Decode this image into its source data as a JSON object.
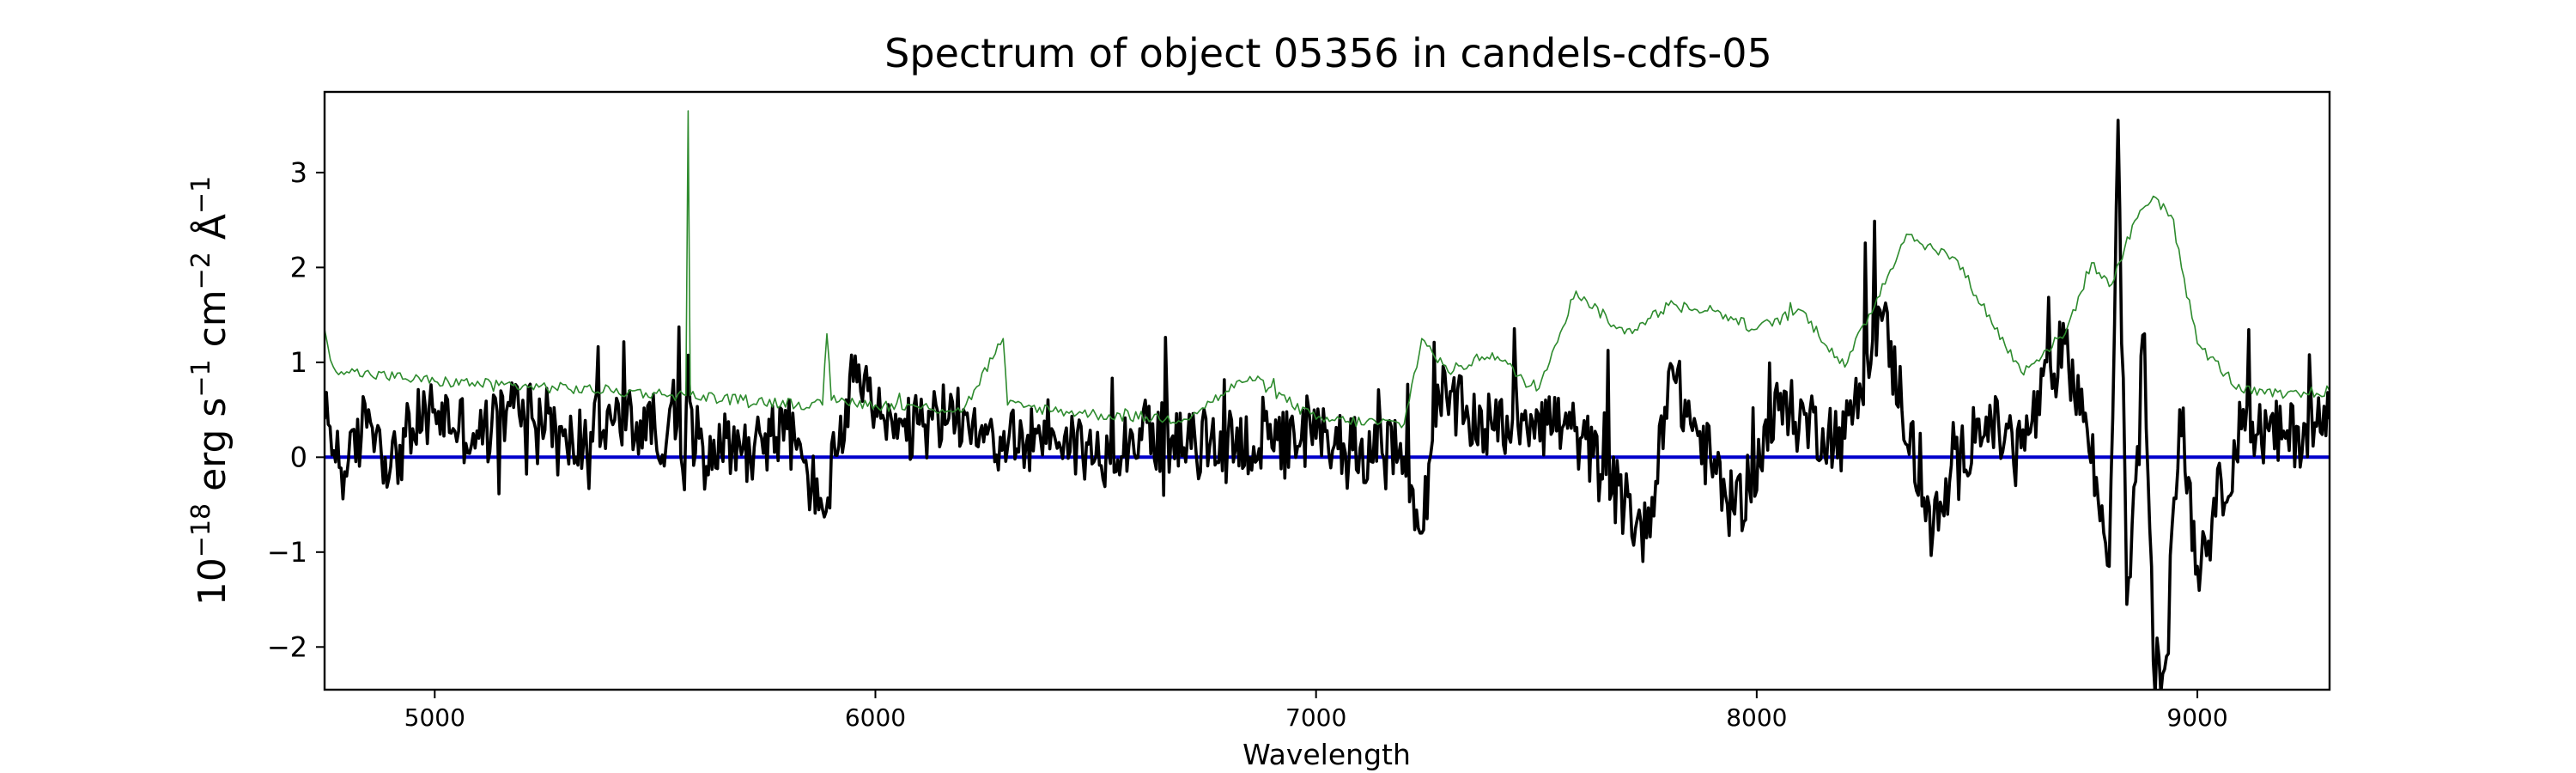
{
  "chart_data": {
    "type": "line",
    "title": "Spectrum of object 05356 in candels-cdfs-05",
    "xlabel": "Wavelength",
    "ylabel": {
      "base": "10",
      "exp": "−18",
      "unit_a": " erg s",
      "exp_a": "−1",
      "unit_b": " cm",
      "exp_b": "−2",
      "unit_c": " Å",
      "exp_c": "−1"
    },
    "xlim": [
      4750,
      9300
    ],
    "ylim": [
      -2.45,
      3.85
    ],
    "x_ticks": [
      5000,
      6000,
      7000,
      8000,
      9000
    ],
    "y_ticks": [
      -2,
      -1,
      0,
      1,
      2,
      3
    ],
    "y_tick_labels": [
      "−2",
      "−1",
      "0",
      "1",
      "2",
      "3"
    ],
    "grid": false,
    "series": [
      {
        "color": "#000000",
        "role": "flux",
        "description_points": [
          [
            4750,
            0.4
          ],
          [
            4800,
            -0.2
          ],
          [
            4850,
            0.5
          ],
          [
            4900,
            -0.1
          ],
          [
            4950,
            0.3
          ],
          [
            5000,
            0.5
          ],
          [
            5100,
            0.2
          ],
          [
            5200,
            0.6
          ],
          [
            5300,
            0.1
          ],
          [
            5400,
            0.4
          ],
          [
            5500,
            0.3
          ],
          [
            5600,
            0.2
          ],
          [
            5700,
            0.1
          ],
          [
            5800,
            0.3
          ],
          [
            5880,
            -0.55
          ],
          [
            5950,
            0.8
          ],
          [
            6050,
            0.2
          ],
          [
            6200,
            0.5
          ],
          [
            6300,
            0.1
          ],
          [
            6400,
            0.3
          ],
          [
            6500,
            0.0
          ],
          [
            6600,
            0.3
          ],
          [
            6700,
            0.1
          ],
          [
            6800,
            0.2
          ],
          [
            6900,
            0.1
          ],
          [
            7000,
            0.2
          ],
          [
            7100,
            0.1
          ],
          [
            7200,
            0.0
          ],
          [
            7240,
            -0.8
          ],
          [
            7280,
            0.6
          ],
          [
            7400,
            0.3
          ],
          [
            7500,
            0.5
          ],
          [
            7600,
            0.2
          ],
          [
            7750,
            -0.85
          ],
          [
            7800,
            0.9
          ],
          [
            7950,
            -0.6
          ],
          [
            8050,
            0.5
          ],
          [
            8200,
            0.2
          ],
          [
            8280,
            1.55
          ],
          [
            8400,
            -0.8
          ],
          [
            8500,
            0.4
          ],
          [
            8600,
            0.1
          ],
          [
            8700,
            1.2
          ],
          [
            8750,
            0.3
          ],
          [
            8800,
            -1.15
          ],
          [
            8820,
            3.55
          ],
          [
            8840,
            -1.55
          ],
          [
            8880,
            1.3
          ],
          [
            8900,
            -2.15
          ],
          [
            8930,
            -2.1
          ],
          [
            8960,
            0.5
          ],
          [
            9000,
            -1.15
          ],
          [
            9100,
            0.3
          ],
          [
            9200,
            0.2
          ],
          [
            9300,
            0.4
          ]
        ]
      },
      {
        "color": "#2e8b2e",
        "role": "error/model",
        "description_points": [
          [
            4750,
            1.35
          ],
          [
            4770,
            0.95
          ],
          [
            4800,
            0.9
          ],
          [
            5000,
            0.8
          ],
          [
            5200,
            0.75
          ],
          [
            5400,
            0.7
          ],
          [
            5570,
            0.65
          ],
          [
            5575,
            3.65
          ],
          [
            5580,
            0.65
          ],
          [
            5700,
            0.6
          ],
          [
            5880,
            0.55
          ],
          [
            5890,
            1.3
          ],
          [
            5900,
            0.6
          ],
          [
            6000,
            0.55
          ],
          [
            6200,
            0.5
          ],
          [
            6290,
            1.25
          ],
          [
            6300,
            0.55
          ],
          [
            6500,
            0.45
          ],
          [
            6700,
            0.4
          ],
          [
            6850,
            0.85
          ],
          [
            7000,
            0.4
          ],
          [
            7200,
            0.35
          ],
          [
            7240,
            1.25
          ],
          [
            7300,
            0.9
          ],
          [
            7400,
            1.1
          ],
          [
            7500,
            0.7
          ],
          [
            7590,
            1.75
          ],
          [
            7700,
            1.3
          ],
          [
            7800,
            1.6
          ],
          [
            7900,
            1.55
          ],
          [
            8000,
            1.35
          ],
          [
            8100,
            1.55
          ],
          [
            8200,
            0.95
          ],
          [
            8340,
            2.35
          ],
          [
            8400,
            2.2
          ],
          [
            8450,
            2.1
          ],
          [
            8600,
            0.9
          ],
          [
            8700,
            1.3
          ],
          [
            8760,
            2.05
          ],
          [
            8800,
            1.8
          ],
          [
            8870,
            2.6
          ],
          [
            8900,
            2.75
          ],
          [
            8940,
            2.55
          ],
          [
            9000,
            1.2
          ],
          [
            9100,
            0.7
          ],
          [
            9200,
            0.65
          ],
          [
            9300,
            0.7
          ]
        ]
      },
      {
        "color": "#0000cc",
        "role": "zero-line",
        "description_points": [
          [
            4750,
            0.0
          ],
          [
            9300,
            0.0
          ]
        ]
      }
    ]
  }
}
